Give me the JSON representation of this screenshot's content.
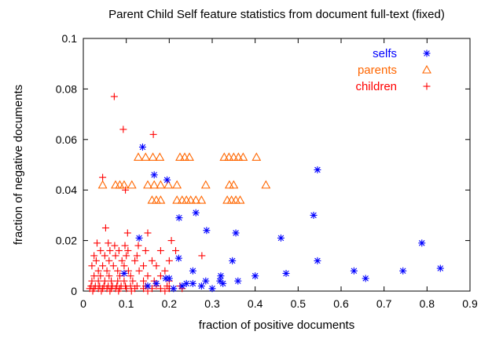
{
  "chart_data": {
    "type": "scatter",
    "title": "Parent Child Self feature statistics from document full-text (fixed)",
    "xlabel": "fraction of positive documents",
    "ylabel": "fraction of negative documents",
    "xlim": [
      0,
      0.9
    ],
    "ylim": [
      0,
      0.1
    ],
    "xticks": [
      "0",
      "0.1",
      "0.2",
      "0.3",
      "0.4",
      "0.5",
      "0.6",
      "0.7",
      "0.8",
      "0.9"
    ],
    "yticks": [
      "0",
      "0.02",
      "0.04",
      "0.06",
      "0.08",
      "0.1"
    ],
    "grid": false,
    "legend_position": "top-right",
    "series": [
      {
        "name": "selfs",
        "marker": "asterisk",
        "color": "#0000ff",
        "points": [
          [
            0.138,
            0.057
          ],
          [
            0.165,
            0.046
          ],
          [
            0.195,
            0.044
          ],
          [
            0.223,
            0.029
          ],
          [
            0.262,
            0.031
          ],
          [
            0.287,
            0.024
          ],
          [
            0.355,
            0.023
          ],
          [
            0.347,
            0.012
          ],
          [
            0.545,
            0.048
          ],
          [
            0.536,
            0.03
          ],
          [
            0.46,
            0.021
          ],
          [
            0.545,
            0.012
          ],
          [
            0.472,
            0.007
          ],
          [
            0.4,
            0.006
          ],
          [
            0.36,
            0.004
          ],
          [
            0.63,
            0.008
          ],
          [
            0.657,
            0.005
          ],
          [
            0.744,
            0.008
          ],
          [
            0.788,
            0.019
          ],
          [
            0.831,
            0.009
          ],
          [
            0.13,
            0.021
          ],
          [
            0.222,
            0.013
          ],
          [
            0.255,
            0.008
          ],
          [
            0.32,
            0.006
          ],
          [
            0.318,
            0.004
          ],
          [
            0.325,
            0.003
          ],
          [
            0.285,
            0.004
          ],
          [
            0.255,
            0.003
          ],
          [
            0.24,
            0.003
          ],
          [
            0.2,
            0.005
          ],
          [
            0.192,
            0.005
          ],
          [
            0.23,
            0.002
          ],
          [
            0.095,
            0.007
          ],
          [
            0.17,
            0.003
          ],
          [
            0.15,
            0.002
          ],
          [
            0.275,
            0.002
          ],
          [
            0.3,
            0.001
          ],
          [
            0.21,
            0.001
          ]
        ]
      },
      {
        "name": "parents",
        "marker": "triangle",
        "color": "#ff6600",
        "points": [
          [
            0.128,
            0.053
          ],
          [
            0.145,
            0.053
          ],
          [
            0.162,
            0.053
          ],
          [
            0.178,
            0.053
          ],
          [
            0.225,
            0.053
          ],
          [
            0.236,
            0.053
          ],
          [
            0.247,
            0.053
          ],
          [
            0.328,
            0.053
          ],
          [
            0.339,
            0.053
          ],
          [
            0.35,
            0.053
          ],
          [
            0.361,
            0.053
          ],
          [
            0.372,
            0.053
          ],
          [
            0.403,
            0.053
          ],
          [
            0.045,
            0.042
          ],
          [
            0.075,
            0.042
          ],
          [
            0.085,
            0.042
          ],
          [
            0.095,
            0.042
          ],
          [
            0.113,
            0.042
          ],
          [
            0.15,
            0.042
          ],
          [
            0.165,
            0.042
          ],
          [
            0.18,
            0.042
          ],
          [
            0.198,
            0.042
          ],
          [
            0.218,
            0.042
          ],
          [
            0.285,
            0.042
          ],
          [
            0.34,
            0.042
          ],
          [
            0.35,
            0.042
          ],
          [
            0.425,
            0.042
          ],
          [
            0.16,
            0.036
          ],
          [
            0.17,
            0.036
          ],
          [
            0.18,
            0.036
          ],
          [
            0.218,
            0.036
          ],
          [
            0.23,
            0.036
          ],
          [
            0.24,
            0.036
          ],
          [
            0.25,
            0.036
          ],
          [
            0.262,
            0.036
          ],
          [
            0.275,
            0.036
          ],
          [
            0.335,
            0.036
          ],
          [
            0.345,
            0.036
          ],
          [
            0.355,
            0.036
          ],
          [
            0.365,
            0.036
          ]
        ]
      },
      {
        "name": "children",
        "marker": "plus",
        "color": "#ff0000",
        "points": [
          [
            0.072,
            0.077
          ],
          [
            0.093,
            0.064
          ],
          [
            0.163,
            0.062
          ],
          [
            0.045,
            0.045
          ],
          [
            0.098,
            0.04
          ],
          [
            0.052,
            0.025
          ],
          [
            0.103,
            0.023
          ],
          [
            0.15,
            0.023
          ],
          [
            0.205,
            0.02
          ],
          [
            0.032,
            0.019
          ],
          [
            0.058,
            0.019
          ],
          [
            0.073,
            0.018
          ],
          [
            0.097,
            0.018
          ],
          [
            0.128,
            0.018
          ],
          [
            0.04,
            0.016
          ],
          [
            0.062,
            0.016
          ],
          [
            0.083,
            0.016
          ],
          [
            0.104,
            0.016
          ],
          [
            0.145,
            0.016
          ],
          [
            0.18,
            0.016
          ],
          [
            0.215,
            0.016
          ],
          [
            0.025,
            0.014
          ],
          [
            0.05,
            0.014
          ],
          [
            0.075,
            0.014
          ],
          [
            0.1,
            0.014
          ],
          [
            0.125,
            0.014
          ],
          [
            0.276,
            0.014
          ],
          [
            0.03,
            0.012
          ],
          [
            0.06,
            0.012
          ],
          [
            0.09,
            0.012
          ],
          [
            0.12,
            0.012
          ],
          [
            0.16,
            0.012
          ],
          [
            0.2,
            0.012
          ],
          [
            0.02,
            0.01
          ],
          [
            0.045,
            0.01
          ],
          [
            0.07,
            0.01
          ],
          [
            0.095,
            0.01
          ],
          [
            0.14,
            0.01
          ],
          [
            0.17,
            0.01
          ],
          [
            0.035,
            0.008
          ],
          [
            0.055,
            0.008
          ],
          [
            0.08,
            0.008
          ],
          [
            0.105,
            0.008
          ],
          [
            0.13,
            0.008
          ],
          [
            0.19,
            0.008
          ],
          [
            0.025,
            0.006
          ],
          [
            0.04,
            0.006
          ],
          [
            0.06,
            0.006
          ],
          [
            0.085,
            0.006
          ],
          [
            0.11,
            0.006
          ],
          [
            0.15,
            0.006
          ],
          [
            0.18,
            0.006
          ],
          [
            0.02,
            0.004
          ],
          [
            0.035,
            0.004
          ],
          [
            0.05,
            0.004
          ],
          [
            0.065,
            0.004
          ],
          [
            0.08,
            0.004
          ],
          [
            0.095,
            0.004
          ],
          [
            0.115,
            0.004
          ],
          [
            0.14,
            0.004
          ],
          [
            0.165,
            0.004
          ],
          [
            0.2,
            0.004
          ],
          [
            0.018,
            0.002
          ],
          [
            0.028,
            0.002
          ],
          [
            0.038,
            0.002
          ],
          [
            0.048,
            0.002
          ],
          [
            0.058,
            0.002
          ],
          [
            0.068,
            0.002
          ],
          [
            0.078,
            0.002
          ],
          [
            0.088,
            0.002
          ],
          [
            0.098,
            0.002
          ],
          [
            0.11,
            0.002
          ],
          [
            0.125,
            0.002
          ],
          [
            0.145,
            0.002
          ],
          [
            0.17,
            0.002
          ],
          [
            0.195,
            0.002
          ],
          [
            0.225,
            0.002
          ],
          [
            0.015,
            0.001
          ],
          [
            0.025,
            0.001
          ],
          [
            0.035,
            0.001
          ],
          [
            0.045,
            0.001
          ],
          [
            0.055,
            0.001
          ],
          [
            0.065,
            0.001
          ],
          [
            0.075,
            0.001
          ],
          [
            0.085,
            0.001
          ],
          [
            0.1,
            0.001
          ],
          [
            0.12,
            0.001
          ],
          [
            0.14,
            0.001
          ],
          [
            0.16,
            0.001
          ],
          [
            0.18,
            0.001
          ],
          [
            0.2,
            0.001
          ],
          [
            0.23,
            0.001
          ],
          [
            0.022,
            0.0
          ],
          [
            0.042,
            0.0
          ],
          [
            0.062,
            0.0
          ],
          [
            0.082,
            0.0
          ],
          [
            0.112,
            0.0
          ],
          [
            0.15,
            0.0
          ],
          [
            0.19,
            0.0
          ]
        ]
      }
    ]
  }
}
